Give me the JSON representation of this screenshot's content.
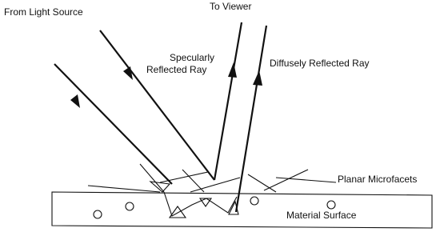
{
  "labels": {
    "light_source": "From Light Source",
    "viewer": "To Viewer",
    "specular": {
      "lines": [
        "Specularly",
        "Reflected Ray"
      ]
    },
    "diffuse": "Diffusely Reflected Ray",
    "microfacets": "Planar Microfacets",
    "surface": "Material Surface"
  }
}
